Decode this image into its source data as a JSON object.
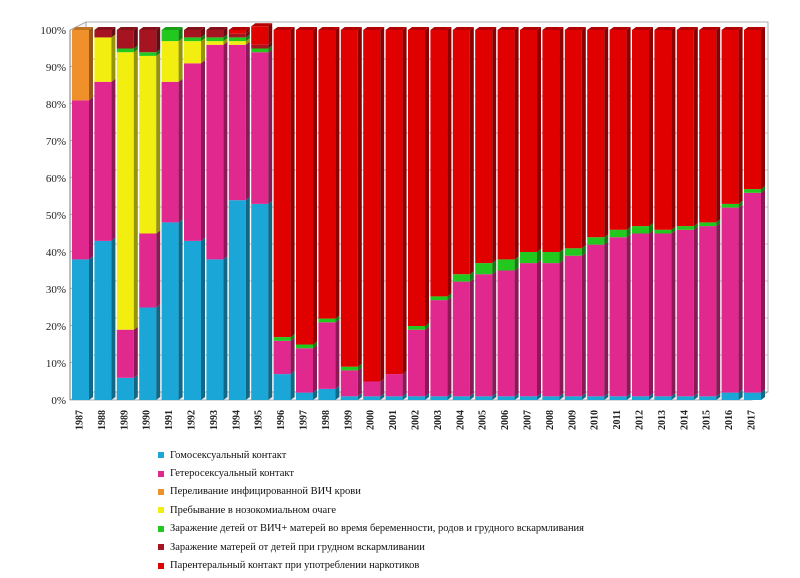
{
  "chart_data": {
    "type": "bar",
    "stacked": true,
    "normalized": true,
    "categories": [
      "1987",
      "1988",
      "1989",
      "1990",
      "1991",
      "1992",
      "1993",
      "1994",
      "1995",
      "1996",
      "1997",
      "1998",
      "1999",
      "2000",
      "2001",
      "2002",
      "2003",
      "2004",
      "2005",
      "2006",
      "2007",
      "2008",
      "2009",
      "2010",
      "2011",
      "2012",
      "2013",
      "2014",
      "2015",
      "2016",
      "2017"
    ],
    "ylim": [
      0,
      100
    ],
    "y_ticks": [
      "0%",
      "10%",
      "20%",
      "30%",
      "40%",
      "50%",
      "60%",
      "70%",
      "80%",
      "90%",
      "100%"
    ],
    "grid": true,
    "legend_position": "bottom",
    "series": [
      {
        "name": "Гомосексуальный контакт",
        "color": "#1aa7d8",
        "values": [
          38,
          43,
          6,
          25,
          48,
          43,
          38,
          54,
          53,
          7,
          2,
          3,
          1,
          1,
          1,
          1,
          1,
          1,
          1,
          1,
          1,
          1,
          1,
          1,
          1,
          1,
          1,
          1,
          1,
          2,
          2
        ]
      },
      {
        "name": "Гетеросексуальный контакт",
        "color": "#e0288e",
        "values": [
          43,
          43,
          13,
          20,
          38,
          48,
          58,
          42,
          41,
          9,
          12,
          18,
          7,
          4,
          6,
          18,
          26,
          31,
          33,
          34,
          36,
          36,
          38,
          41,
          43,
          44,
          44,
          45,
          46,
          50,
          54
        ]
      },
      {
        "name": "Переливание инфицированной ВИЧ крови",
        "color": "#f0902a",
        "values": [
          19,
          0,
          0,
          0,
          0,
          0,
          0,
          0,
          0,
          0,
          0,
          0,
          0,
          0,
          0,
          0,
          0,
          0,
          0,
          0,
          0,
          0,
          0,
          0,
          0,
          0,
          0,
          0,
          0,
          0,
          0
        ]
      },
      {
        "name": "Пребывание в нозокомиальном очаге",
        "color": "#f2ee10",
        "values": [
          0,
          12,
          75,
          48,
          11,
          6,
          1,
          1,
          0,
          0,
          0,
          0,
          0,
          0,
          0,
          0,
          0,
          0,
          0,
          0,
          0,
          0,
          0,
          0,
          0,
          0,
          0,
          0,
          0,
          0,
          0
        ]
      },
      {
        "name": "Заражение детей от ВИЧ+ матерей во время беременности, родов и грудного вскармливания",
        "color": "#22c81e",
        "values": [
          0,
          0,
          1,
          1,
          3,
          1,
          1,
          1,
          1,
          1,
          1,
          1,
          1,
          0,
          0,
          1,
          1,
          2,
          3,
          3,
          3,
          3,
          2,
          2,
          2,
          2,
          1,
          1,
          1,
          1,
          1
        ]
      },
      {
        "name": "Заражение матерей от детей при грудном вскармливании",
        "color": "#a51420",
        "values": [
          0,
          2,
          5,
          6,
          0,
          2,
          2,
          1,
          1,
          0,
          0,
          0,
          0,
          0,
          0,
          0,
          0,
          0,
          0,
          0,
          0,
          0,
          0,
          0,
          0,
          0,
          0,
          0,
          0,
          0,
          0
        ]
      },
      {
        "name": "Парентеральный контакт при употреблении наркотиков",
        "color": "#e00000",
        "values": [
          0,
          0,
          0,
          0,
          0,
          0,
          0,
          1,
          5,
          83,
          85,
          78,
          91,
          95,
          93,
          80,
          72,
          66,
          63,
          62,
          60,
          60,
          59,
          56,
          54,
          53,
          54,
          53,
          52,
          47,
          43
        ]
      }
    ]
  }
}
